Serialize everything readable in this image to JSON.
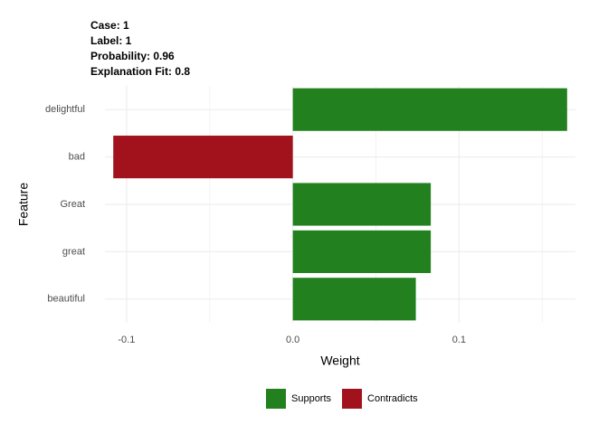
{
  "chart_data": {
    "type": "bar",
    "orientation": "horizontal",
    "title_lines": [
      "Case: 1",
      "Label: 1",
      "Probability: 0.96",
      "Explanation Fit: 0.8"
    ],
    "x_label": "Weight",
    "y_label": "Feature",
    "categories": [
      "delightful",
      "bad",
      "Great",
      "great",
      "beautiful"
    ],
    "series": [
      {
        "name": "Supports",
        "color": "#22801e",
        "values": [
          0.165,
          null,
          0.083,
          0.083,
          0.074
        ]
      },
      {
        "name": "Contradicts",
        "color": "#a2121c",
        "values": [
          null,
          -0.108,
          null,
          null,
          null
        ]
      }
    ],
    "xlim": [
      -0.113,
      0.17
    ],
    "xticks": [
      {
        "value": -0.1,
        "label": "-0.1"
      },
      {
        "value": 0,
        "label": "0.0"
      },
      {
        "value": 0.1,
        "label": "0.1"
      }
    ],
    "xminorticks": [
      -0.05,
      0.05,
      0.15
    ],
    "grid": true,
    "legend": "bottom"
  }
}
